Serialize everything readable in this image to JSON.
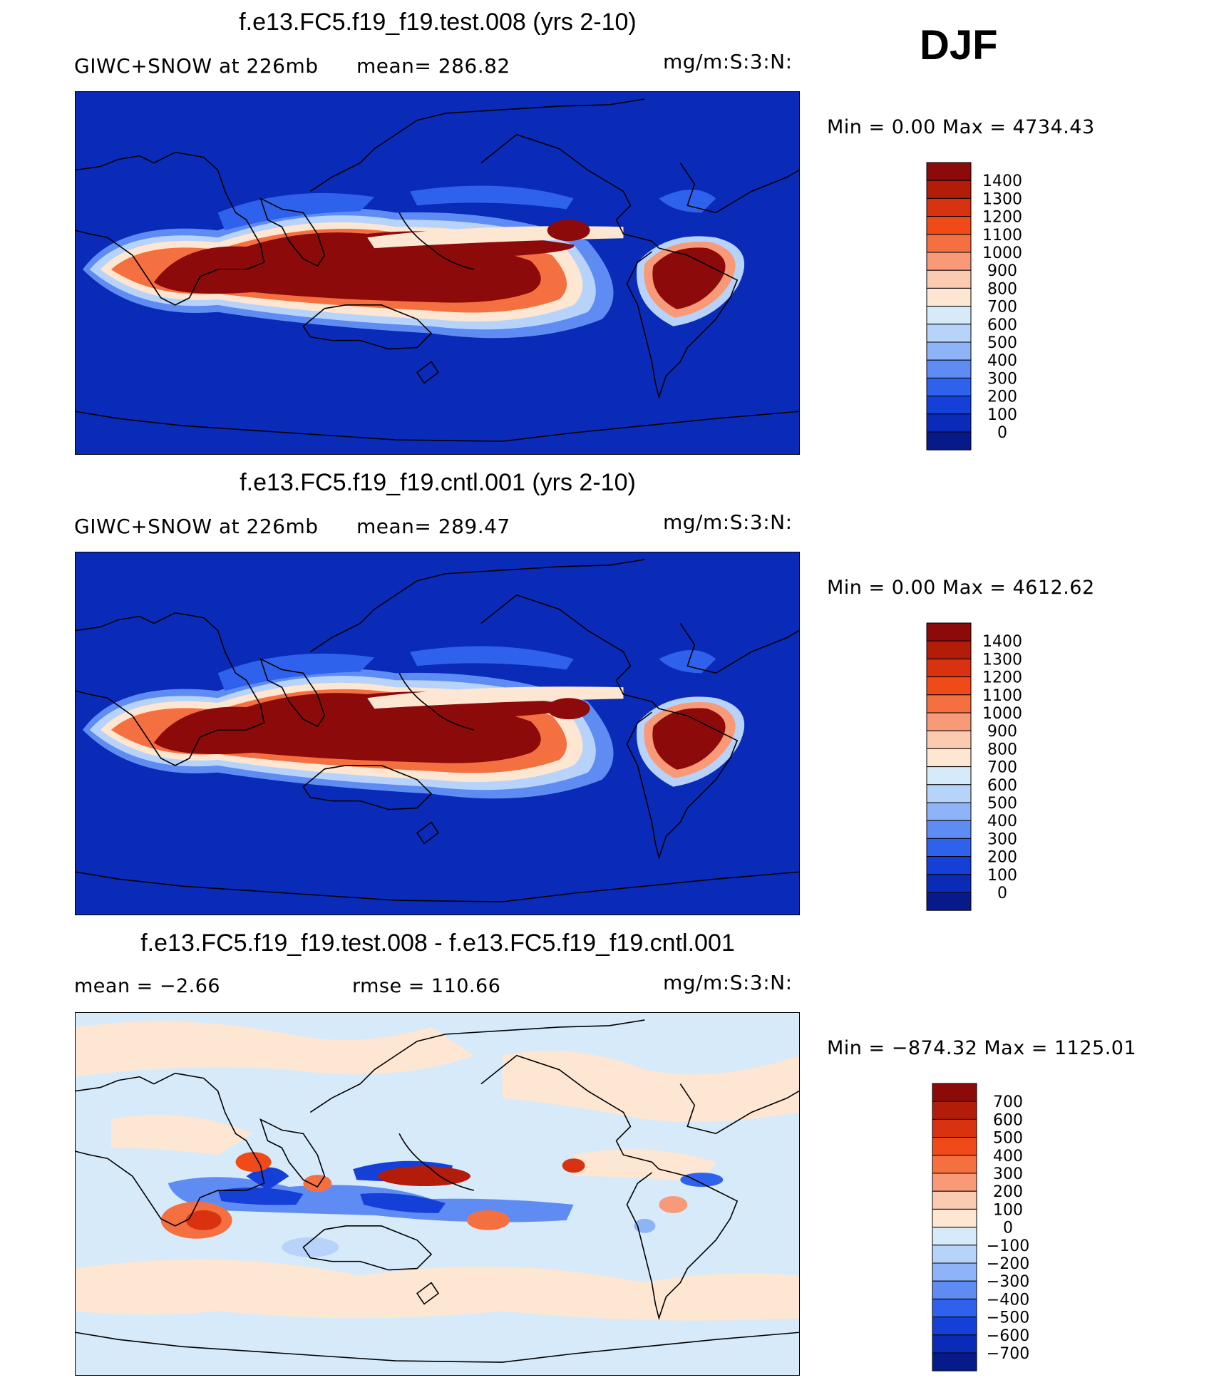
{
  "season": "DJF",
  "units": "mg/m:S:3:N:",
  "panels": [
    {
      "title": "f.e13.FC5.f19_f19.test.008 (yrs 2-10)",
      "subtitle_left": "GIWC+SNOW at 226mb",
      "subtitle_mid": "mean= 286.82",
      "stats": "Min =    0.00 Max = 4734.43"
    },
    {
      "title": "f.e13.FC5.f19_f19.cntl.001 (yrs 2-10)",
      "subtitle_left": "GIWC+SNOW at 226mb",
      "subtitle_mid": "mean= 289.47",
      "stats": "Min =    0.00 Max = 4612.62"
    },
    {
      "title": "f.e13.FC5.f19_f19.test.008 - f.e13.FC5.f19_f19.cntl.001",
      "subtitle_left": "mean =   −2.66",
      "subtitle_mid": "rmse = 110.66",
      "stats": "Min = −874.32 Max = 1125.01"
    }
  ],
  "chart_data": [
    {
      "type": "heatmap",
      "title": "f.e13.FC5.f19_f19.test.008 (yrs 2-10)",
      "field": "GIWC+SNOW at 226mb",
      "mean": 286.82,
      "min": 0.0,
      "max": 4734.43,
      "colorbar": {
        "levels": [
          "1400",
          "1300",
          "1200",
          "1100",
          "1000",
          "900",
          "800",
          "700",
          "600",
          "500",
          "400",
          "300",
          "200",
          "100",
          "0"
        ],
        "colors": [
          "#8c0a0a",
          "#b31c08",
          "#d93210",
          "#f04a18",
          "#f57040",
          "#f89a78",
          "#facbb0",
          "#fde6d2",
          "#d7eafa",
          "#b7d3fa",
          "#8fb3f7",
          "#5f8cf2",
          "#2f62ec",
          "#1440d8",
          "#0a2ab8",
          "#061a8a"
        ]
      }
    },
    {
      "type": "heatmap",
      "title": "f.e13.FC5.f19_f19.cntl.001 (yrs 2-10)",
      "field": "GIWC+SNOW at 226mb",
      "mean": 289.47,
      "min": 0.0,
      "max": 4612.62,
      "colorbar": {
        "levels": [
          "1400",
          "1300",
          "1200",
          "1100",
          "1000",
          "900",
          "800",
          "700",
          "600",
          "500",
          "400",
          "300",
          "200",
          "100",
          "0"
        ],
        "colors": [
          "#8c0a0a",
          "#b31c08",
          "#d93210",
          "#f04a18",
          "#f57040",
          "#f89a78",
          "#facbb0",
          "#fde6d2",
          "#d7eafa",
          "#b7d3fa",
          "#8fb3f7",
          "#5f8cf2",
          "#2f62ec",
          "#1440d8",
          "#0a2ab8",
          "#061a8a"
        ]
      }
    },
    {
      "type": "heatmap",
      "title": "f.e13.FC5.f19_f19.test.008 - f.e13.FC5.f19_f19.cntl.001",
      "mean": -2.66,
      "rmse": 110.66,
      "min": -874.32,
      "max": 1125.01,
      "colorbar": {
        "levels": [
          "700",
          "600",
          "500",
          "400",
          "300",
          "200",
          "100",
          "0",
          "−100",
          "−200",
          "−300",
          "−400",
          "−500",
          "−600",
          "−700"
        ],
        "colors": [
          "#8c0a0a",
          "#b31c08",
          "#d93210",
          "#f04a18",
          "#f57040",
          "#f89a78",
          "#facbb0",
          "#fde6d2",
          "#d7eafa",
          "#b7d3fa",
          "#8fb3f7",
          "#5f8cf2",
          "#2f62ec",
          "#1440d8",
          "#0a2ab8",
          "#061a8a"
        ]
      }
    }
  ]
}
